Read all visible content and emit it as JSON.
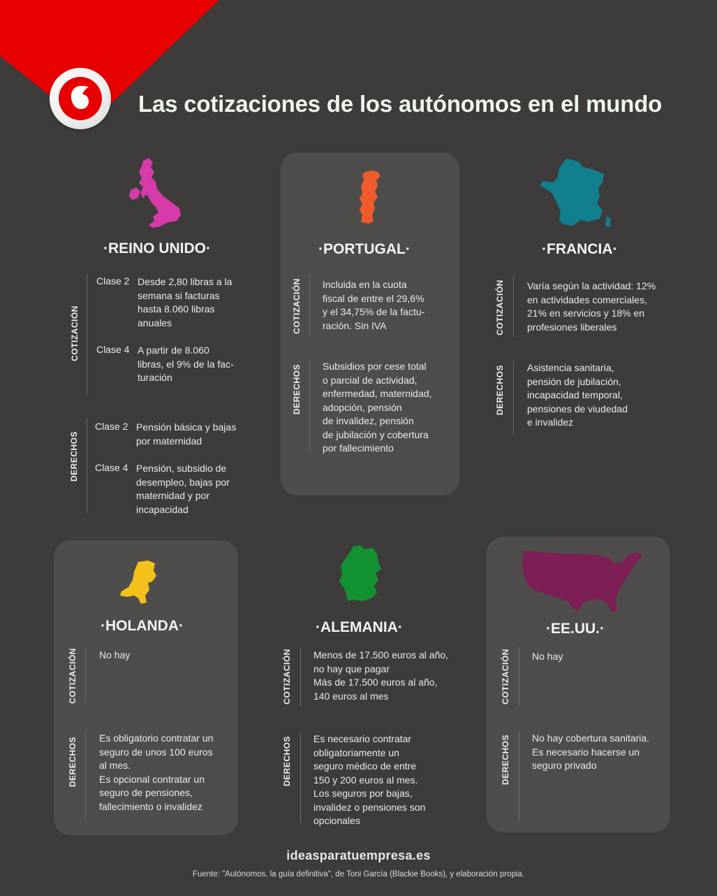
{
  "header": {
    "title": "Las cotizaciones de los autónomos en el mundo",
    "brand_logo": "vodafone-speechmark-logo"
  },
  "colors": {
    "background": "#3d3c3b",
    "panel": "#4e4d4b",
    "brand_red": "#e60000",
    "uk": "#d63ba9",
    "portugal": "#f05b2c",
    "france": "#127f8f",
    "netherlands": "#f4c01c",
    "germany": "#139232",
    "usa": "#7d1f56"
  },
  "labels": {
    "cotizacion": "COTIZACIÓN",
    "derechos": "DERECHOS"
  },
  "countries": {
    "uk": {
      "name": "·REINO UNIDO·",
      "cotizacion": [
        {
          "clase": "Clase 2",
          "text": "Desde 2,80 libras a la\nsemana si facturas\nhasta 8.060 libras\nanuales"
        },
        {
          "clase": "Clase 4",
          "text": "A partir de 8.060\nlibras, el 9% de la fac-\nturación"
        }
      ],
      "derechos": [
        {
          "clase": "Clase 2",
          "text": "Pensión básica y bajas\npor maternidad"
        },
        {
          "clase": "Clase 4",
          "text": "Pensión, subsidio de\ndesempleo, bajas por\nmaternidad y por\nincapacidad"
        }
      ]
    },
    "portugal": {
      "name": "·PORTUGAL·",
      "cotizacion": "Incluida en la cuota\nfiscal de entre el 29,6%\ny el 34,75% de la factu-\nración. Sin IVA",
      "derechos": "Subsidios por cese total\no parcial de actividad,\nenfermedad, maternidad,\nadopción, pensión\nde invalidez, pensión\nde jubilación y cobertura\npor fallecimiento"
    },
    "france": {
      "name": "·FRANCIA·",
      "cotizacion": "Varía según la actividad: 12%\nen actividades comerciales,\n21% en servicios y 18% en\nprofesiones liberales",
      "derechos": "Asistencia sanitaria,\npensión de jubilación,\nincapacidad temporal,\npensiones de viudedad\ne invalidez"
    },
    "netherlands": {
      "name": "·HOLANDA·",
      "cotizacion": "No hay",
      "derechos": "Es obligatorio contratar un\nseguro de unos 100 euros\nal mes.\nEs opcional contratar un\nseguro de pensiones,\nfallecimiento o invalidez"
    },
    "germany": {
      "name": "·ALEMANIA·",
      "cotizacion": "Menos de 17.500 euros al año,\nno hay que pagar\nMás de 17.500 euros al año,\n140 euros al mes",
      "derechos": "Es necesario contratar\nobligatoriamente un\nseguro médico de entre\n150 y 200 euros al mes.\nLos seguros por bajas,\ninvalidez o pensiones son\nopcionales"
    },
    "usa": {
      "name": "·EE.UU.·",
      "cotizacion": "No hay",
      "derechos": "No hay cobertura sanitaria.\nEs necesario hacerse un\nseguro privado"
    }
  },
  "footer": {
    "site": "ideasparatuempresa.es",
    "source": "Fuente: \"Autónomos, la guía definitiva\", de Toni García (Blackie Books), y elaboración propia."
  }
}
